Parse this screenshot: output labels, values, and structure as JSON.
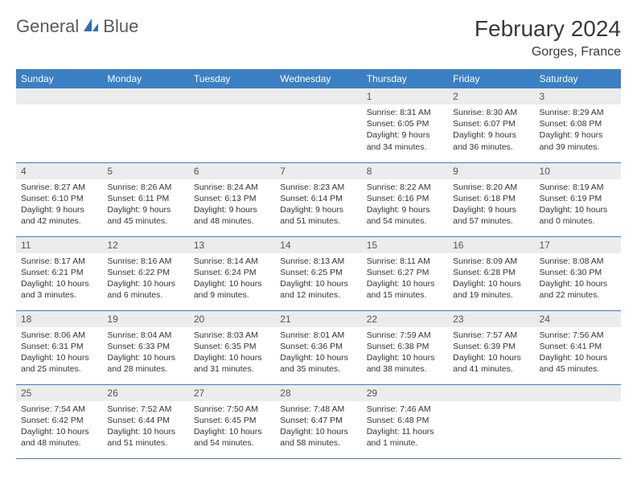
{
  "brand": {
    "part1": "General",
    "part2": "Blue"
  },
  "title": "February 2024",
  "location": "Gorges, France",
  "colors": {
    "header_bg": "#3b7fc4",
    "header_fg": "#ffffff",
    "daynum_bg": "#ececec",
    "daynum_fg": "#555555",
    "body_fg": "#333333",
    "rule": "#3b7fc4",
    "page_bg": "#ffffff",
    "logo_gray": "#5a5a5a",
    "logo_blue": "#3b7fc4"
  },
  "typography": {
    "title_fontsize": 28,
    "location_fontsize": 16,
    "weekday_fontsize": 12,
    "daynum_fontsize": 12,
    "body_fontsize": 10.5,
    "logo_fontsize": 22
  },
  "weekdays": [
    "Sunday",
    "Monday",
    "Tuesday",
    "Wednesday",
    "Thursday",
    "Friday",
    "Saturday"
  ],
  "layout": {
    "first_weekday_index": 4,
    "days_in_month": 29,
    "rows": 5,
    "cols": 7
  },
  "days": [
    {
      "n": 1,
      "sunrise": "8:31 AM",
      "sunset": "6:05 PM",
      "daylight": "9 hours and 34 minutes."
    },
    {
      "n": 2,
      "sunrise": "8:30 AM",
      "sunset": "6:07 PM",
      "daylight": "9 hours and 36 minutes."
    },
    {
      "n": 3,
      "sunrise": "8:29 AM",
      "sunset": "6:08 PM",
      "daylight": "9 hours and 39 minutes."
    },
    {
      "n": 4,
      "sunrise": "8:27 AM",
      "sunset": "6:10 PM",
      "daylight": "9 hours and 42 minutes."
    },
    {
      "n": 5,
      "sunrise": "8:26 AM",
      "sunset": "6:11 PM",
      "daylight": "9 hours and 45 minutes."
    },
    {
      "n": 6,
      "sunrise": "8:24 AM",
      "sunset": "6:13 PM",
      "daylight": "9 hours and 48 minutes."
    },
    {
      "n": 7,
      "sunrise": "8:23 AM",
      "sunset": "6:14 PM",
      "daylight": "9 hours and 51 minutes."
    },
    {
      "n": 8,
      "sunrise": "8:22 AM",
      "sunset": "6:16 PM",
      "daylight": "9 hours and 54 minutes."
    },
    {
      "n": 9,
      "sunrise": "8:20 AM",
      "sunset": "6:18 PM",
      "daylight": "9 hours and 57 minutes."
    },
    {
      "n": 10,
      "sunrise": "8:19 AM",
      "sunset": "6:19 PM",
      "daylight": "10 hours and 0 minutes."
    },
    {
      "n": 11,
      "sunrise": "8:17 AM",
      "sunset": "6:21 PM",
      "daylight": "10 hours and 3 minutes."
    },
    {
      "n": 12,
      "sunrise": "8:16 AM",
      "sunset": "6:22 PM",
      "daylight": "10 hours and 6 minutes."
    },
    {
      "n": 13,
      "sunrise": "8:14 AM",
      "sunset": "6:24 PM",
      "daylight": "10 hours and 9 minutes."
    },
    {
      "n": 14,
      "sunrise": "8:13 AM",
      "sunset": "6:25 PM",
      "daylight": "10 hours and 12 minutes."
    },
    {
      "n": 15,
      "sunrise": "8:11 AM",
      "sunset": "6:27 PM",
      "daylight": "10 hours and 15 minutes."
    },
    {
      "n": 16,
      "sunrise": "8:09 AM",
      "sunset": "6:28 PM",
      "daylight": "10 hours and 19 minutes."
    },
    {
      "n": 17,
      "sunrise": "8:08 AM",
      "sunset": "6:30 PM",
      "daylight": "10 hours and 22 minutes."
    },
    {
      "n": 18,
      "sunrise": "8:06 AM",
      "sunset": "6:31 PM",
      "daylight": "10 hours and 25 minutes."
    },
    {
      "n": 19,
      "sunrise": "8:04 AM",
      "sunset": "6:33 PM",
      "daylight": "10 hours and 28 minutes."
    },
    {
      "n": 20,
      "sunrise": "8:03 AM",
      "sunset": "6:35 PM",
      "daylight": "10 hours and 31 minutes."
    },
    {
      "n": 21,
      "sunrise": "8:01 AM",
      "sunset": "6:36 PM",
      "daylight": "10 hours and 35 minutes."
    },
    {
      "n": 22,
      "sunrise": "7:59 AM",
      "sunset": "6:38 PM",
      "daylight": "10 hours and 38 minutes."
    },
    {
      "n": 23,
      "sunrise": "7:57 AM",
      "sunset": "6:39 PM",
      "daylight": "10 hours and 41 minutes."
    },
    {
      "n": 24,
      "sunrise": "7:56 AM",
      "sunset": "6:41 PM",
      "daylight": "10 hours and 45 minutes."
    },
    {
      "n": 25,
      "sunrise": "7:54 AM",
      "sunset": "6:42 PM",
      "daylight": "10 hours and 48 minutes."
    },
    {
      "n": 26,
      "sunrise": "7:52 AM",
      "sunset": "6:44 PM",
      "daylight": "10 hours and 51 minutes."
    },
    {
      "n": 27,
      "sunrise": "7:50 AM",
      "sunset": "6:45 PM",
      "daylight": "10 hours and 54 minutes."
    },
    {
      "n": 28,
      "sunrise": "7:48 AM",
      "sunset": "6:47 PM",
      "daylight": "10 hours and 58 minutes."
    },
    {
      "n": 29,
      "sunrise": "7:46 AM",
      "sunset": "6:48 PM",
      "daylight": "11 hours and 1 minute."
    }
  ],
  "labels": {
    "sunrise": "Sunrise:",
    "sunset": "Sunset:",
    "daylight": "Daylight:"
  }
}
